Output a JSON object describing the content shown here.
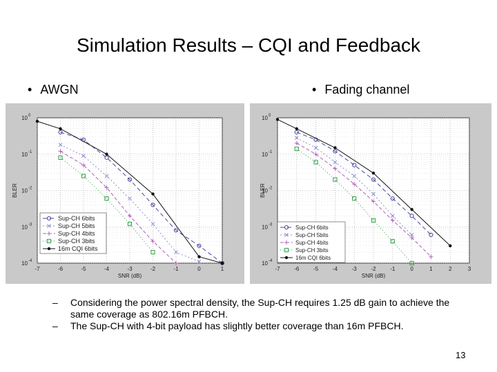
{
  "slide": {
    "title": "Simulation Results – CQI and Feedback",
    "bullet_left": "AWGN",
    "bullet_right": "Fading channel",
    "bullet_symbol": "•",
    "dash_symbol": "–",
    "notes": [
      "Considering the power spectral density, the Sup-CH requires 1.25 dB gain to achieve the same coverage as 802.16m PFBCH.",
      "The Sup-CH with 4-bit payload has slightly better coverage than 16m PFBCH."
    ],
    "page_number": "13"
  },
  "chart_data": [
    {
      "type": "line",
      "title": "",
      "xlabel": "SNR (dB)",
      "ylabel": "BLER",
      "yscale": "log",
      "xlim": [
        -7,
        1
      ],
      "ylim": [
        0.0001,
        1
      ],
      "x_ticks": [
        "-7",
        "-6",
        "-5",
        "-4",
        "-3",
        "-2",
        "-1",
        "0",
        "1"
      ],
      "y_ticks": [
        "10^0",
        "10^-1",
        "10^-2",
        "10^-3",
        "10^-4"
      ],
      "grid": true,
      "legend_position": "bottom-left",
      "series": [
        {
          "name": "Sup-CH 6bits",
          "marker": "o",
          "color": "#4a4aa0",
          "dash": "6,4",
          "x": [
            -6,
            -5,
            -4,
            -3,
            -2,
            -1,
            0,
            1
          ],
          "y": [
            0.4,
            0.25,
            0.08,
            0.02,
            0.004,
            0.0008,
            0.0003,
            0.0001
          ]
        },
        {
          "name": "Sup-CH 5bits",
          "marker": "x",
          "color": "#8c8cd2",
          "dash": "2,3",
          "x": [
            -6,
            -5,
            -4,
            -3,
            -2,
            -1,
            0
          ],
          "y": [
            0.18,
            0.09,
            0.025,
            0.006,
            0.0012,
            0.0002,
            0.00011
          ]
        },
        {
          "name": "Sup-CH 4bits",
          "marker": "+",
          "color": "#b060b8",
          "dash": "5,3",
          "x": [
            -6,
            -5,
            -4,
            -3,
            -2,
            -1
          ],
          "y": [
            0.12,
            0.05,
            0.012,
            0.002,
            0.0004,
            0.0001
          ]
        },
        {
          "name": "Sup-CH 3bits",
          "marker": "s",
          "color": "#2f9e44",
          "dash": "1,3",
          "x": [
            -6,
            -5,
            -4,
            -3,
            -2
          ],
          "y": [
            0.08,
            0.025,
            0.006,
            0.0012,
            0.0002
          ]
        },
        {
          "name": "16m CQI 6bits",
          "marker": "dot",
          "color": "#111111",
          "dash": "",
          "x": [
            -7,
            -6,
            -4,
            -2,
            0,
            1
          ],
          "y": [
            0.8,
            0.5,
            0.1,
            0.008,
            0.00015,
            0.0001
          ]
        }
      ]
    },
    {
      "type": "line",
      "title": "",
      "xlabel": "SNR (dB)",
      "ylabel": "BLER",
      "yscale": "log",
      "xlim": [
        -7,
        3
      ],
      "ylim": [
        0.0001,
        1
      ],
      "x_ticks": [
        "-7",
        "-6",
        "-5",
        "-4",
        "-3",
        "-2",
        "-1",
        "0",
        "1",
        "2",
        "3"
      ],
      "y_ticks": [
        "10^0",
        "10^-1",
        "10^-2",
        "10^-3",
        "10^-4"
      ],
      "grid": true,
      "legend_position": "bottom-right",
      "series": [
        {
          "name": "Sup-CH 6bits",
          "marker": "o",
          "color": "#4a4aa0",
          "dash": "6,4",
          "x": [
            -6,
            -5,
            -4,
            -3,
            -2,
            -1,
            0,
            1
          ],
          "y": [
            0.4,
            0.25,
            0.12,
            0.05,
            0.02,
            0.006,
            0.002,
            0.0006
          ]
        },
        {
          "name": "Sup-CH 5bits",
          "marker": "x",
          "color": "#8c8cd2",
          "dash": "2,3",
          "x": [
            -6,
            -5,
            -4,
            -3,
            -2,
            -1,
            0
          ],
          "y": [
            0.28,
            0.15,
            0.06,
            0.025,
            0.008,
            0.002,
            0.0006
          ]
        },
        {
          "name": "Sup-CH 4bits",
          "marker": "+",
          "color": "#b060b8",
          "dash": "5,3",
          "x": [
            -6,
            -5,
            -4,
            -3,
            -2,
            -1,
            0,
            1
          ],
          "y": [
            0.2,
            0.1,
            0.04,
            0.015,
            0.005,
            0.0015,
            0.0005,
            0.00015
          ]
        },
        {
          "name": "Sup-CH 3bits",
          "marker": "s",
          "color": "#2f9e44",
          "dash": "1,3",
          "x": [
            -6,
            -5,
            -4,
            -3,
            -2,
            -1,
            0
          ],
          "y": [
            0.14,
            0.06,
            0.02,
            0.006,
            0.0015,
            0.0004,
            0.0001
          ]
        },
        {
          "name": "16m CQI 6bits",
          "marker": "dot",
          "color": "#111111",
          "dash": "",
          "x": [
            -7,
            -6,
            -4,
            -2,
            0,
            2
          ],
          "y": [
            0.9,
            0.5,
            0.15,
            0.03,
            0.003,
            0.0003
          ]
        }
      ]
    }
  ]
}
